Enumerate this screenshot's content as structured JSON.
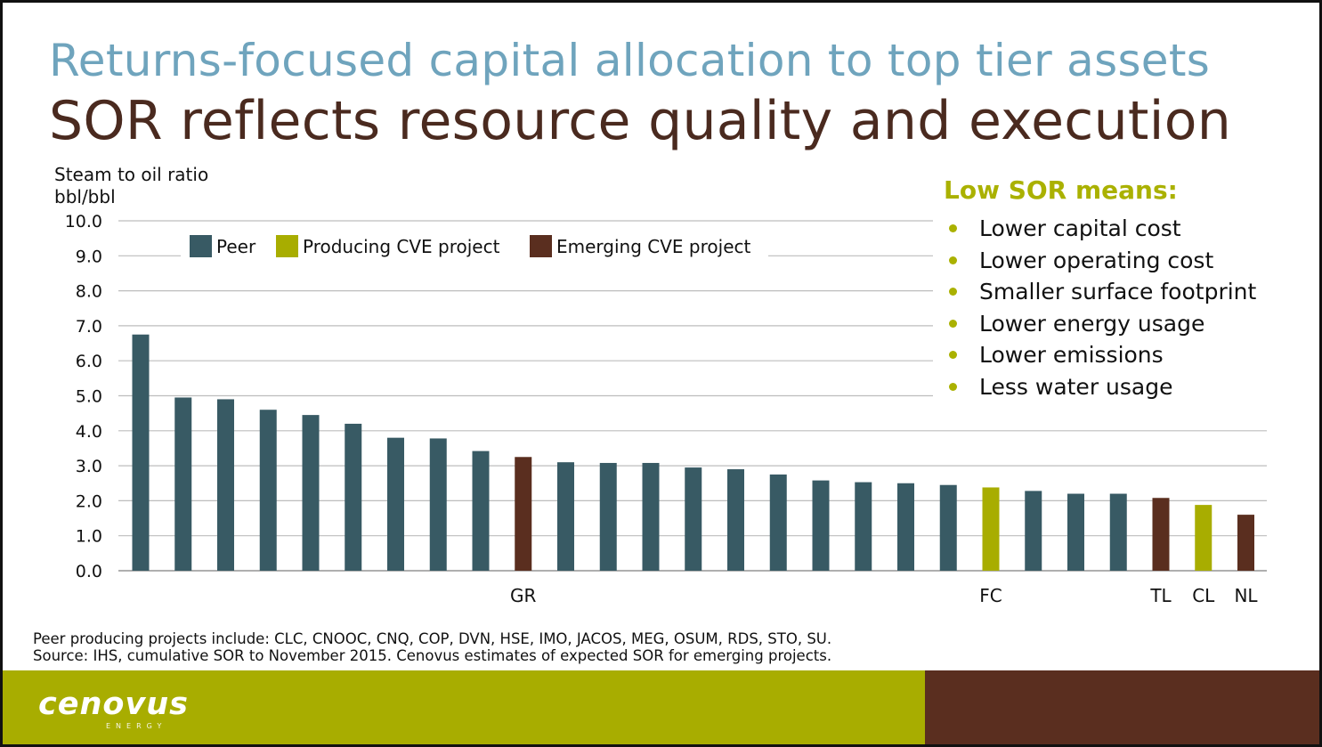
{
  "title_line1": "Returns-focused capital allocation to top tier assets",
  "title_line2": "SOR reflects resource quality and execution",
  "colors": {
    "peer": "#385a64",
    "producing": "#a8ad00",
    "emerging": "#5a2e1f",
    "title_blue": "#6fa4bd",
    "title_brown": "#4a2a1f"
  },
  "chart_data": {
    "type": "bar",
    "ylabel_line1": "Steam to oil ratio",
    "ylabel_line2": "bbl/bbl",
    "ylim": [
      0,
      10
    ],
    "yticks": [
      "0.0",
      "1.0",
      "2.0",
      "3.0",
      "4.0",
      "5.0",
      "6.0",
      "7.0",
      "8.0",
      "9.0",
      "10.0"
    ],
    "grid": true,
    "legend": [
      {
        "label": "Peer",
        "group": "peer"
      },
      {
        "label": "Producing CVE project",
        "group": "producing"
      },
      {
        "label": "Emerging CVE project",
        "group": "emerging"
      }
    ],
    "legend_position": "top",
    "bars": [
      {
        "label": "",
        "value": 6.75,
        "group": "peer"
      },
      {
        "label": "",
        "value": 4.95,
        "group": "peer"
      },
      {
        "label": "",
        "value": 4.9,
        "group": "peer"
      },
      {
        "label": "",
        "value": 4.6,
        "group": "peer"
      },
      {
        "label": "",
        "value": 4.45,
        "group": "peer"
      },
      {
        "label": "",
        "value": 4.2,
        "group": "peer"
      },
      {
        "label": "",
        "value": 3.8,
        "group": "peer"
      },
      {
        "label": "",
        "value": 3.78,
        "group": "peer"
      },
      {
        "label": "",
        "value": 3.42,
        "group": "peer"
      },
      {
        "label": "GR",
        "value": 3.25,
        "group": "emerging"
      },
      {
        "label": "",
        "value": 3.1,
        "group": "peer"
      },
      {
        "label": "",
        "value": 3.08,
        "group": "peer"
      },
      {
        "label": "",
        "value": 3.08,
        "group": "peer"
      },
      {
        "label": "",
        "value": 2.95,
        "group": "peer"
      },
      {
        "label": "",
        "value": 2.9,
        "group": "peer"
      },
      {
        "label": "",
        "value": 2.75,
        "group": "peer"
      },
      {
        "label": "",
        "value": 2.58,
        "group": "peer"
      },
      {
        "label": "",
        "value": 2.53,
        "group": "peer"
      },
      {
        "label": "",
        "value": 2.5,
        "group": "peer"
      },
      {
        "label": "",
        "value": 2.45,
        "group": "peer"
      },
      {
        "label": "FC",
        "value": 2.38,
        "group": "producing"
      },
      {
        "label": "",
        "value": 2.28,
        "group": "peer"
      },
      {
        "label": "",
        "value": 2.2,
        "group": "peer"
      },
      {
        "label": "",
        "value": 2.2,
        "group": "peer"
      },
      {
        "label": "TL",
        "value": 2.08,
        "group": "emerging"
      },
      {
        "label": "CL",
        "value": 1.88,
        "group": "producing"
      },
      {
        "label": "NL",
        "value": 1.6,
        "group": "emerging"
      }
    ]
  },
  "sidebar": {
    "title": "Low SOR means:",
    "items": [
      "Lower capital cost",
      "Lower operating cost",
      "Smaller surface footprint",
      "Lower energy usage",
      "Lower emissions",
      "Less water usage"
    ]
  },
  "footnote_line1": "Peer producing projects include: CLC, CNOOC, CNQ, COP, DVN, HSE, IMO, JACOS, MEG, OSUM, RDS, STO, SU.",
  "footnote_line2": "Source: IHS, cumulative SOR to November 2015. Cenovus estimates of expected SOR for emerging projects.",
  "logo_text": "cenovus",
  "logo_subtext": "ENERGY"
}
